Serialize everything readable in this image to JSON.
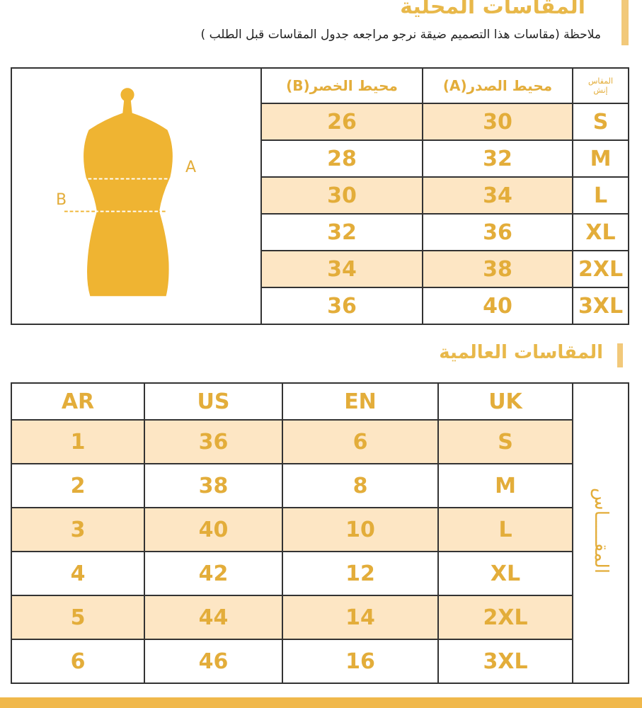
{
  "local": {
    "title": "المقاسات المحلية",
    "note": "ملاحظة (مقاسات هذا التصميم ضيقة نرجو مراجعه جدول المقاسات قبل الطلب )",
    "headers": {
      "waist": "محيط الخصر(B)",
      "chest": "محيط الصدر(A)",
      "size_line1": "المقاس",
      "size_line2": "إنش"
    },
    "figure_labels": {
      "a": "A",
      "b": "B"
    },
    "rows": [
      {
        "size": "S",
        "chest": "30",
        "waist": "26"
      },
      {
        "size": "M",
        "chest": "32",
        "waist": "28"
      },
      {
        "size": "L",
        "chest": "34",
        "waist": "30"
      },
      {
        "size": "XL",
        "chest": "36",
        "waist": "32"
      },
      {
        "size": "2XL",
        "chest": "38",
        "waist": "34"
      },
      {
        "size": "3XL",
        "chest": "40",
        "waist": "36"
      }
    ]
  },
  "international": {
    "title": "المقاسات العالمية",
    "side_label": "المقـــــاس",
    "headers": {
      "ar": "AR",
      "us": "US",
      "en": "EN",
      "uk": "UK"
    },
    "rows": [
      {
        "uk": "S",
        "en": "6",
        "us": "36",
        "ar": "1"
      },
      {
        "uk": "M",
        "en": "8",
        "us": "38",
        "ar": "2"
      },
      {
        "uk": "L",
        "en": "10",
        "us": "40",
        "ar": "3"
      },
      {
        "uk": "XL",
        "en": "12",
        "us": "42",
        "ar": "4"
      },
      {
        "uk": "2XL",
        "en": "14",
        "us": "44",
        "ar": "5"
      },
      {
        "uk": "3XL",
        "en": "16",
        "us": "46",
        "ar": "6"
      }
    ]
  },
  "colors": {
    "accent": "#e3ad3a",
    "row_highlight": "#fde6c4"
  }
}
